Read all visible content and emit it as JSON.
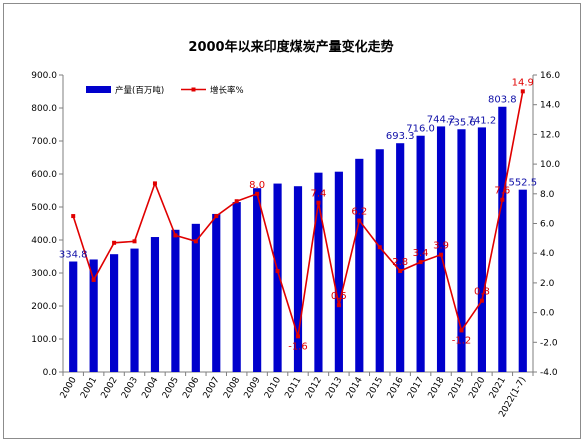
{
  "chart_data": {
    "type": "bar+line",
    "title": "2000年以来印度煤炭产量变化走势",
    "categories": [
      "2000",
      "2001",
      "2002",
      "2003",
      "2004",
      "2005",
      "2006",
      "2007",
      "2008",
      "2009",
      "2010",
      "2011",
      "2012",
      "2013",
      "2014",
      "2015",
      "2016",
      "2017",
      "2018",
      "2019",
      "2020",
      "2021",
      "2022(1-7)"
    ],
    "series": [
      {
        "name": "产量(百万吨)",
        "type": "bar",
        "axis": "left",
        "color": "#0000cc",
        "values": [
          334.8,
          341,
          357,
          374,
          409,
          431,
          449,
          479,
          515,
          557,
          571,
          563,
          604,
          607,
          646,
          675,
          693.3,
          716.0,
          744.2,
          735.6,
          741.2,
          803.8,
          552.5
        ],
        "labels": {
          "0": "334.8",
          "16": "693.3",
          "17": "716.0",
          "18": "744.2",
          "19": "735.6",
          "20": "741.2",
          "21": "803.8",
          "22": "552.5"
        }
      },
      {
        "name": "增长率%",
        "type": "line",
        "axis": "right",
        "color": "#e00000",
        "values": [
          6.5,
          2.2,
          4.7,
          4.8,
          8.7,
          5.2,
          4.8,
          6.5,
          7.5,
          8.0,
          2.8,
          -1.6,
          7.4,
          0.5,
          6.2,
          4.4,
          2.8,
          3.4,
          3.9,
          -1.2,
          0.8,
          7.6,
          14.9
        ],
        "labels": {
          "9": "8.0",
          "11": "-1.6",
          "12": "7.4",
          "13": "0.5",
          "14": "6.2",
          "16": "2.8",
          "17": "3.4",
          "18": "3.9",
          "19": "-1.2",
          "20": "0.8",
          "21": "7.6",
          "22": "14.9"
        }
      }
    ],
    "y_left": {
      "min": 0,
      "max": 900,
      "step": 100,
      "decimals": 1
    },
    "y_right": {
      "min": -4,
      "max": 16,
      "step": 2,
      "decimals": 1
    },
    "legend_position": "top-left",
    "grid": false
  }
}
